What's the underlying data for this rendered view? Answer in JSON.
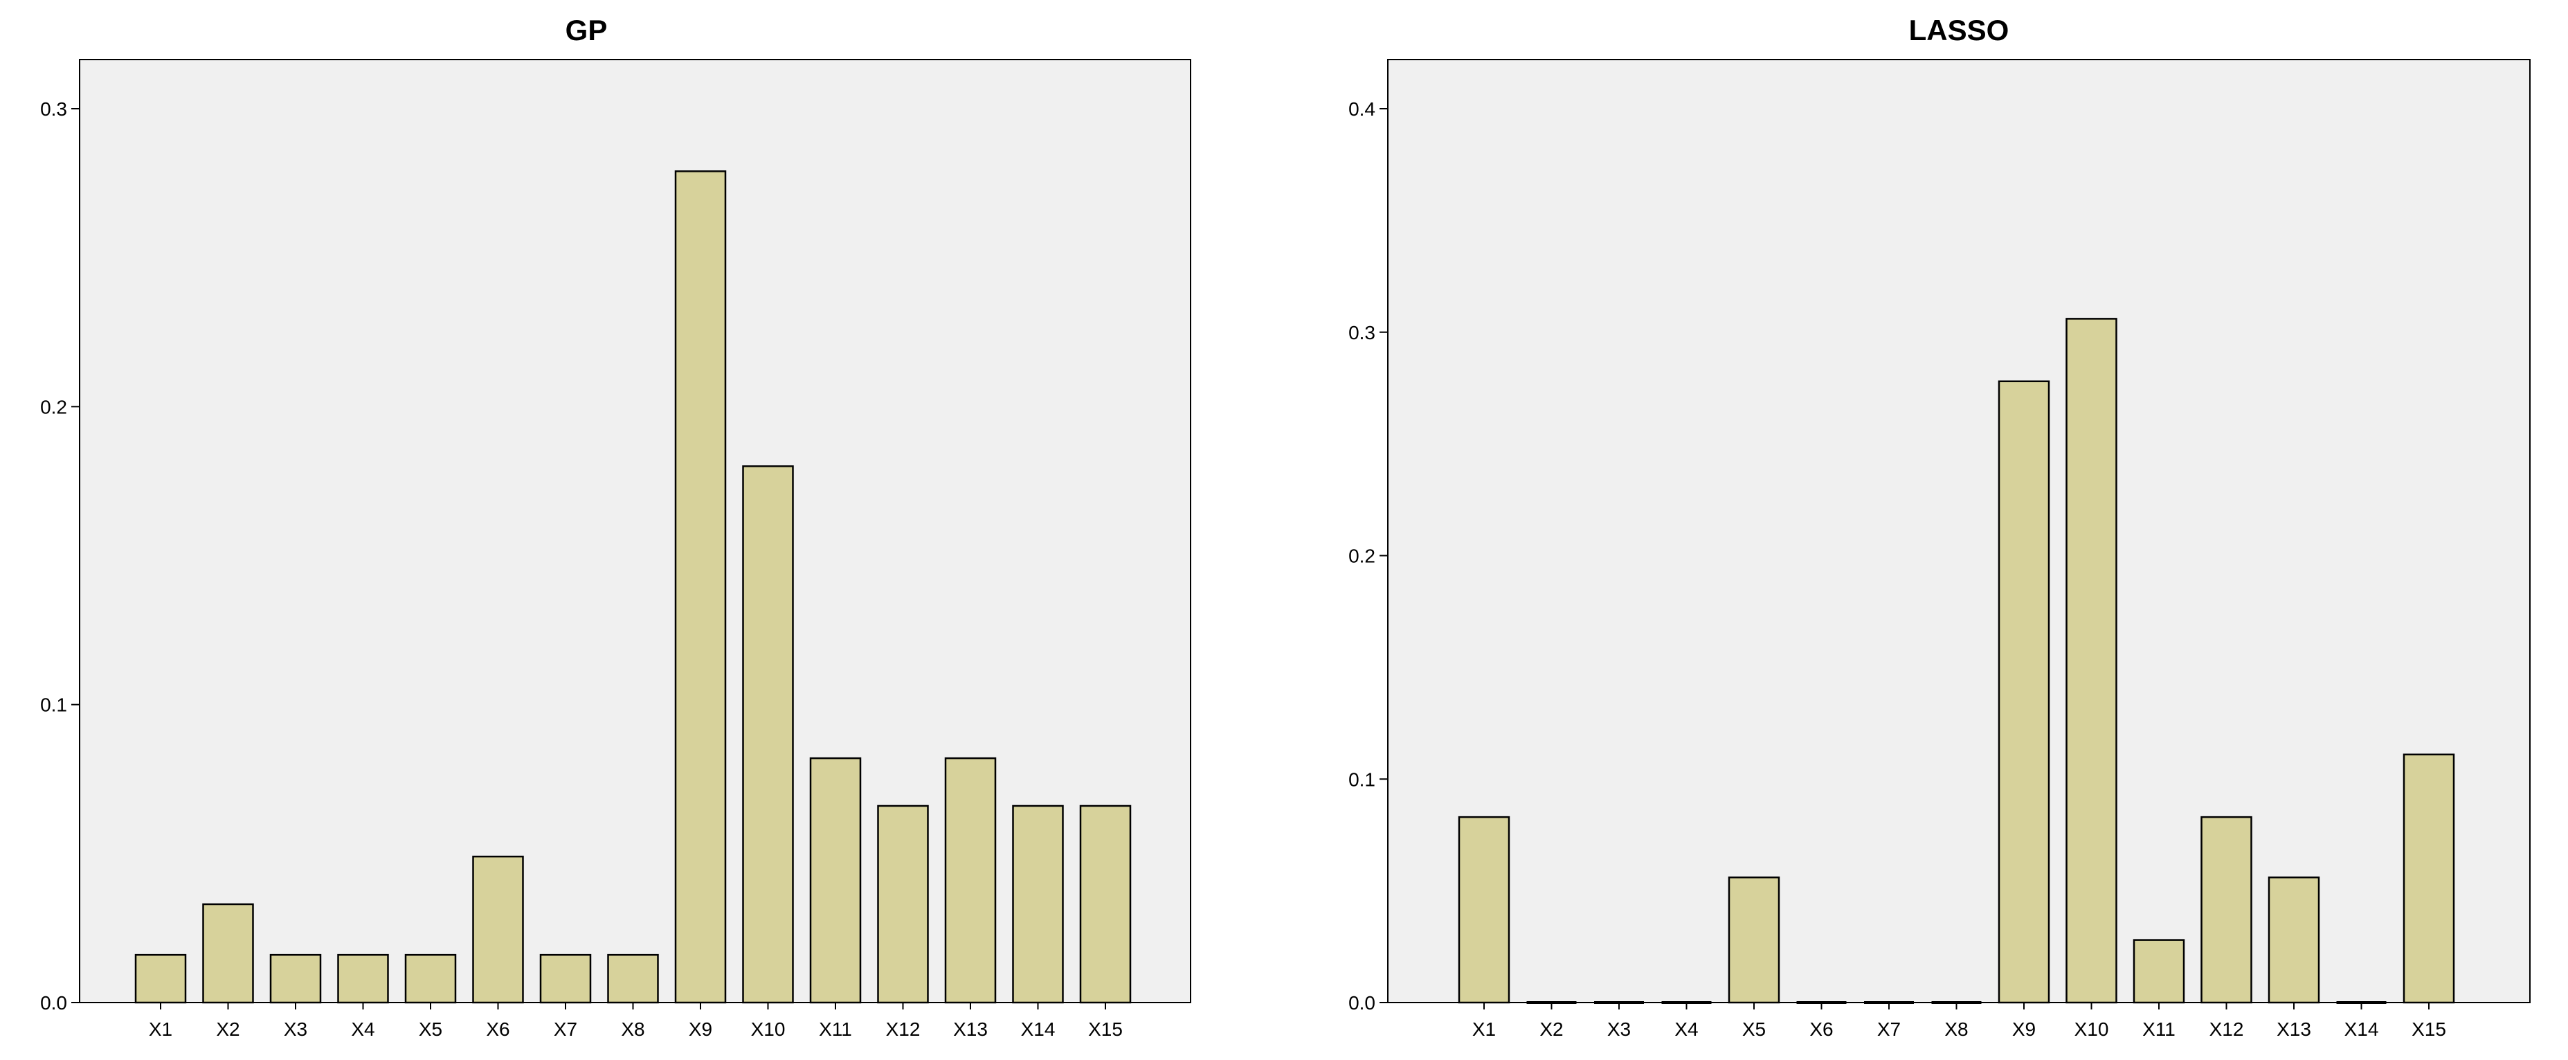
{
  "colors": {
    "bar": "#d7d29b",
    "plot_background": "#f0f0f0",
    "axis": "#000000"
  },
  "chart_data": [
    {
      "type": "bar",
      "title": "GP",
      "categories": [
        "X1",
        "X2",
        "X3",
        "X4",
        "X5",
        "X6",
        "X7",
        "X8",
        "X9",
        "X10",
        "X11",
        "X12",
        "X13",
        "X14",
        "X15"
      ],
      "values": [
        0.016,
        0.033,
        0.016,
        0.016,
        0.016,
        0.049,
        0.016,
        0.016,
        0.279,
        0.18,
        0.082,
        0.066,
        0.082,
        0.066,
        0.066
      ],
      "yticks": [
        "0.0",
        "0.1",
        "0.2",
        "0.3"
      ],
      "ylim": [
        0,
        0.3165
      ],
      "xlabel": "",
      "ylabel": "",
      "grid": false
    },
    {
      "type": "bar",
      "title": "LASSO",
      "categories": [
        "X1",
        "X2",
        "X3",
        "X4",
        "X5",
        "X6",
        "X7",
        "X8",
        "X9",
        "X10",
        "X11",
        "X12",
        "X13",
        "X14",
        "X15"
      ],
      "values": [
        0.083,
        0,
        0,
        0,
        0.056,
        0,
        0,
        0,
        0.278,
        0.306,
        0.028,
        0.083,
        0.056,
        0,
        0.111
      ],
      "yticks": [
        "0.0",
        "0.1",
        "0.2",
        "0.3",
        "0.4"
      ],
      "ylim": [
        0,
        0.422
      ],
      "xlabel": "",
      "ylabel": "",
      "grid": false
    }
  ]
}
